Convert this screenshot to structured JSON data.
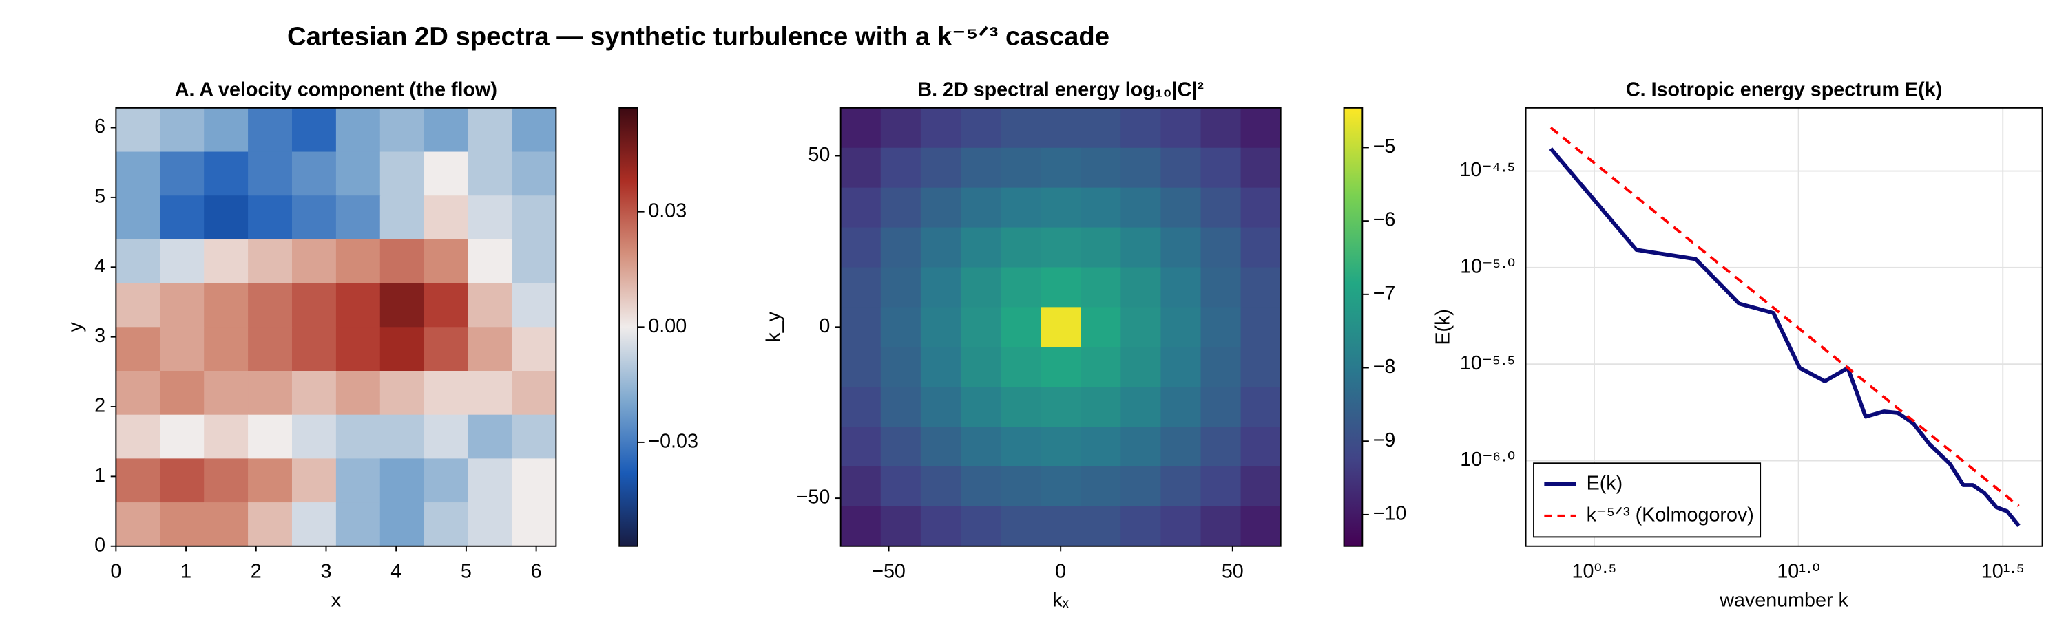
{
  "title": "Cartesian 2D spectra — synthetic turbulence with a k⁻⁵ᐟ³ cascade",
  "chart_data": [
    {
      "type": "heatmap",
      "title": "A. A velocity component (the flow)",
      "xlabel": "x",
      "ylabel": "y",
      "xlim": [
        0,
        6.283
      ],
      "ylim": [
        0,
        6.283
      ],
      "xticks": [
        0,
        1,
        2,
        3,
        4,
        5,
        6
      ],
      "yticks": [
        0,
        1,
        2,
        3,
        4,
        5,
        6
      ],
      "z": [
        [
          -0.01,
          -0.015,
          -0.02,
          -0.03,
          -0.035,
          -0.02,
          -0.015,
          -0.02,
          -0.01,
          -0.02
        ],
        [
          -0.02,
          -0.03,
          -0.035,
          -0.03,
          -0.025,
          -0.02,
          -0.01,
          0.0,
          -0.01,
          -0.015
        ],
        [
          -0.02,
          -0.035,
          -0.04,
          -0.035,
          -0.03,
          -0.025,
          -0.01,
          0.005,
          -0.005,
          -0.01
        ],
        [
          -0.01,
          -0.005,
          0.005,
          0.01,
          0.015,
          0.02,
          0.025,
          0.02,
          0.0,
          -0.01
        ],
        [
          0.01,
          0.015,
          0.02,
          0.025,
          0.03,
          0.035,
          0.045,
          0.035,
          0.01,
          -0.005
        ],
        [
          0.02,
          0.015,
          0.02,
          0.025,
          0.03,
          0.035,
          0.04,
          0.03,
          0.015,
          0.005
        ],
        [
          0.015,
          0.02,
          0.015,
          0.015,
          0.01,
          0.015,
          0.01,
          0.005,
          0.005,
          0.01
        ],
        [
          0.005,
          0.0,
          0.005,
          0.0,
          -0.005,
          -0.01,
          -0.01,
          -0.005,
          -0.015,
          -0.01
        ],
        [
          0.025,
          0.03,
          0.025,
          0.02,
          0.01,
          -0.015,
          -0.02,
          -0.015,
          -0.005,
          0.0
        ],
        [
          0.015,
          0.02,
          0.02,
          0.01,
          -0.005,
          -0.015,
          -0.02,
          -0.01,
          -0.005,
          0.0
        ]
      ],
      "colormap": [
        "#181c43",
        "#1a5bb7",
        "#7fa9cf",
        "#f0eceb",
        "#d4907c",
        "#ac2e24",
        "#3c0912"
      ],
      "clim": [
        -0.057,
        0.057
      ],
      "colorbar_ticks": [
        {
          "value": -0.03,
          "label": "−0.03"
        },
        {
          "value": 0,
          "label": "0.00"
        },
        0.03
      ]
    },
    {
      "type": "heatmap",
      "title": "B. 2D spectral energy  log₁₀|C|²",
      "xlabel": "kₓ",
      "ylabel": "k_y",
      "xlim": [
        -64,
        64
      ],
      "ylim": [
        -64,
        64
      ],
      "xticks": [
        {
          "value": -50,
          "label": "−50"
        },
        0,
        50
      ],
      "yticks": [
        {
          "value": -50,
          "label": "−50"
        },
        0,
        50
      ],
      "z": [
        [
          -9.9,
          -9.6,
          -9.3,
          -9.1,
          -8.9,
          -8.9,
          -8.9,
          -9.1,
          -9.3,
          -9.6,
          -9.9
        ],
        [
          -9.6,
          -9.2,
          -8.9,
          -8.6,
          -8.5,
          -8.4,
          -8.5,
          -8.6,
          -8.9,
          -9.2,
          -9.6
        ],
        [
          -9.3,
          -8.9,
          -8.5,
          -8.2,
          -8.0,
          -7.9,
          -8.0,
          -8.2,
          -8.5,
          -8.9,
          -9.3
        ],
        [
          -9.1,
          -8.6,
          -8.2,
          -7.8,
          -7.5,
          -7.4,
          -7.5,
          -7.8,
          -8.2,
          -8.6,
          -9.1
        ],
        [
          -8.9,
          -8.5,
          -8.0,
          -7.5,
          -7.1,
          -6.9,
          -7.1,
          -7.5,
          -8.0,
          -8.5,
          -8.9
        ],
        [
          -8.9,
          -8.4,
          -7.9,
          -7.4,
          -6.9,
          -4.6,
          -6.9,
          -7.4,
          -7.9,
          -8.4,
          -8.9
        ],
        [
          -8.9,
          -8.5,
          -8.0,
          -7.5,
          -7.1,
          -6.9,
          -7.1,
          -7.5,
          -8.0,
          -8.5,
          -8.9
        ],
        [
          -9.1,
          -8.6,
          -8.2,
          -7.8,
          -7.5,
          -7.4,
          -7.5,
          -7.8,
          -8.2,
          -8.6,
          -9.1
        ],
        [
          -9.3,
          -8.9,
          -8.5,
          -8.2,
          -8.0,
          -7.9,
          -8.0,
          -8.2,
          -8.5,
          -8.9,
          -9.3
        ],
        [
          -9.6,
          -9.2,
          -8.9,
          -8.6,
          -8.5,
          -8.4,
          -8.5,
          -8.6,
          -8.9,
          -9.2,
          -9.6
        ],
        [
          -9.9,
          -9.6,
          -9.3,
          -9.1,
          -8.9,
          -8.9,
          -8.9,
          -9.1,
          -9.3,
          -9.6,
          -9.9
        ]
      ],
      "colormap": [
        "#440154",
        "#414487",
        "#2a788e",
        "#22a884",
        "#7ad151",
        "#fde725"
      ],
      "clim": [
        -10.43,
        -4.46
      ],
      "colorbar_ticks": [
        {
          "value": -10,
          "label": "−10"
        },
        {
          "value": -9,
          "label": "−9"
        },
        {
          "value": -8,
          "label": "−8"
        },
        {
          "value": -7,
          "label": "−7"
        },
        {
          "value": -6,
          "label": "−6"
        },
        {
          "value": -5,
          "label": "−5"
        }
      ]
    },
    {
      "type": "line",
      "title": "C. Isotropic energy spectrum E(k)",
      "xlabel": "wavenumber k",
      "ylabel": "E(k)",
      "xscale": "log",
      "yscale": "log",
      "grid": true,
      "legend": "lower left",
      "xlim": [
        2.15,
        39.5
      ],
      "ylim": [
        3.61e-07,
        6.71e-05
      ],
      "xticks": [
        {
          "value": 3.1623,
          "label": "10⁰·⁵"
        },
        {
          "value": 10,
          "label": "10¹·⁰"
        },
        {
          "value": 31.623,
          "label": "10¹·⁵"
        }
      ],
      "yticks": [
        {
          "value": 1e-06,
          "label": "10⁻⁶·⁰"
        },
        {
          "value": 3.1623e-06,
          "label": "10⁻⁵·⁵"
        },
        {
          "value": 1e-05,
          "label": "10⁻⁵·⁰"
        },
        {
          "value": 3.1623e-05,
          "label": "10⁻⁴·⁵"
        }
      ],
      "series": [
        {
          "name": "E(k)",
          "color": "#0a0a78",
          "dash": false,
          "x": [
            2.475,
            4.01,
            5.6,
            7.16,
            8.68,
            10.07,
            11.6,
            13.2,
            14.6,
            16.2,
            17.5,
            19.1,
            20.9,
            23.5,
            25.3,
            26.7,
            28.5,
            30.5,
            32.4,
            34.6
          ],
          "values": [
            4.13e-05,
            1.236e-05,
            1.107e-05,
            6.5e-06,
            5.82e-06,
            3.02e-06,
            2.58e-06,
            3.02e-06,
            1.69e-06,
            1.8e-06,
            1.77e-06,
            1.56e-06,
            1.22e-06,
            9.6e-07,
            7.48e-07,
            7.48e-07,
            6.81e-07,
            5.74e-07,
            5.47e-07,
            4.6e-07
          ]
        },
        {
          "name": "k⁻⁵ᐟ³ (Kolmogorov)",
          "color": "#ff0000",
          "dash": true,
          "x": [
            2.475,
            34.6
          ],
          "values": [
            5.3e-05,
            5.82e-07
          ]
        }
      ]
    }
  ]
}
